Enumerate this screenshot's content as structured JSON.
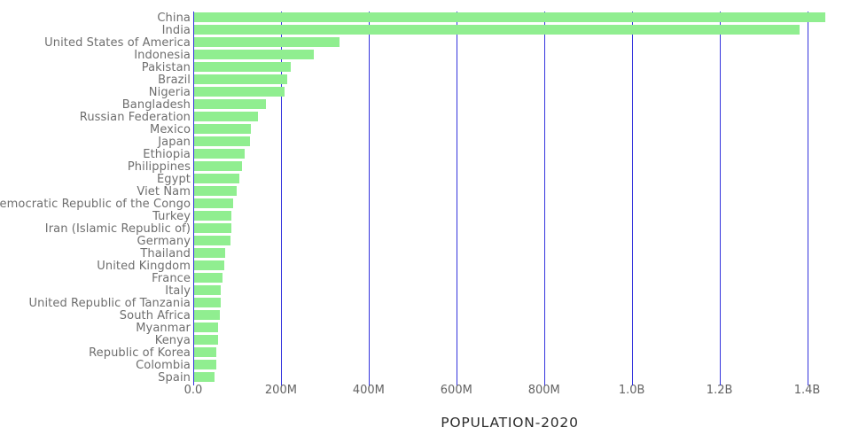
{
  "chart_data": {
    "type": "bar",
    "orientation": "horizontal",
    "xlabel": "POPULATION-2020",
    "ylabel": "",
    "categories": [
      "China",
      "India",
      "United States of America",
      "Indonesia",
      "Pakistan",
      "Brazil",
      "Nigeria",
      "Bangladesh",
      "Russian Federation",
      "Mexico",
      "Japan",
      "Ethiopia",
      "Philippines",
      "Egypt",
      "Viet Nam",
      "Democratic Republic of the Congo",
      "Turkey",
      "Iran (Islamic Republic of)",
      "Germany",
      "Thailand",
      "United Kingdom",
      "France",
      "Italy",
      "United Republic of Tanzania",
      "South Africa",
      "Myanmar",
      "Kenya",
      "Republic of Korea",
      "Colombia",
      "Spain"
    ],
    "values_millions": [
      1439.3,
      1380.0,
      331.0,
      273.5,
      220.9,
      212.6,
      206.1,
      164.7,
      145.9,
      128.9,
      126.5,
      115.0,
      109.6,
      102.3,
      97.3,
      89.6,
      84.3,
      84.0,
      83.8,
      69.8,
      67.9,
      65.3,
      60.5,
      59.7,
      59.3,
      54.4,
      53.8,
      51.3,
      50.9,
      46.8
    ],
    "x_ticks": [
      {
        "label": "0.0",
        "value_millions": 0
      },
      {
        "label": "200M",
        "value_millions": 200
      },
      {
        "label": "400M",
        "value_millions": 400
      },
      {
        "label": "600M",
        "value_millions": 600
      },
      {
        "label": "800M",
        "value_millions": 800
      },
      {
        "label": "1.0B",
        "value_millions": 1000
      },
      {
        "label": "1.2B",
        "value_millions": 1200
      },
      {
        "label": "1.4B",
        "value_millions": 1400
      }
    ],
    "xlim_millions": [
      0,
      1500
    ],
    "grid": true,
    "legend": false,
    "colors": {
      "bar": "#90EE90",
      "gridline": "#3333DD",
      "category_label": "#6e6e6e",
      "tick_label": "#636363",
      "axis_title": "#2b2b2b",
      "background": "#ffffff"
    }
  }
}
